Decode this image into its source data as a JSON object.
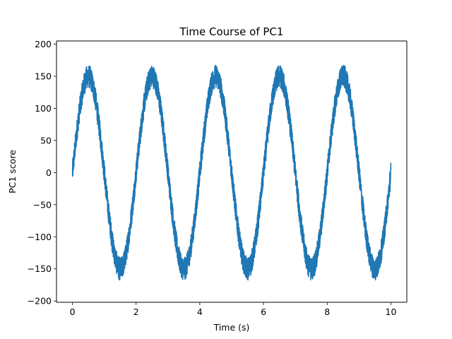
{
  "chart_data": {
    "type": "line",
    "title": "Time Course of PC1",
    "xlabel": "Time (s)",
    "ylabel": "PC1 score",
    "xlim": [
      -0.5,
      10.5
    ],
    "ylim": [
      -202,
      205
    ],
    "xticks": [
      0,
      2,
      4,
      6,
      8,
      10
    ],
    "xtick_labels": [
      "0",
      "2",
      "4",
      "6",
      "8",
      "10"
    ],
    "yticks": [
      -200,
      -150,
      -100,
      -50,
      0,
      50,
      100,
      150,
      200
    ],
    "ytick_labels": [
      "−200",
      "−150",
      "−100",
      "−50",
      "0",
      "50",
      "100",
      "150",
      "200"
    ],
    "grid": false,
    "legend": false,
    "series": [
      {
        "color": "#1f77b4",
        "signal": {
          "amplitude": 150,
          "period_s": 2.0,
          "phase": 0
        },
        "noise_amplitude": 18,
        "x": [
          0,
          0.25,
          0.5,
          0.75,
          1.0,
          1.25,
          1.5,
          1.75,
          2.0,
          2.25,
          2.5,
          2.75,
          3.0,
          3.25,
          3.5,
          3.75,
          4.0,
          4.25,
          4.5,
          4.75,
          5.0,
          5.25,
          5.5,
          5.75,
          6.0,
          6.25,
          6.5,
          6.75,
          7.0,
          7.25,
          7.5,
          7.75,
          8.0,
          8.25,
          8.5,
          8.75,
          9.0,
          9.25,
          9.5,
          9.75,
          10.0
        ],
        "y": [
          0,
          106,
          150,
          106,
          0,
          -106,
          -150,
          -106,
          0,
          106,
          150,
          106,
          0,
          -106,
          -150,
          -106,
          0,
          106,
          150,
          106,
          0,
          -106,
          -150,
          -106,
          0,
          106,
          150,
          106,
          0,
          -106,
          -150,
          -106,
          0,
          106,
          150,
          106,
          0,
          -106,
          -150,
          -106,
          0
        ]
      }
    ]
  }
}
